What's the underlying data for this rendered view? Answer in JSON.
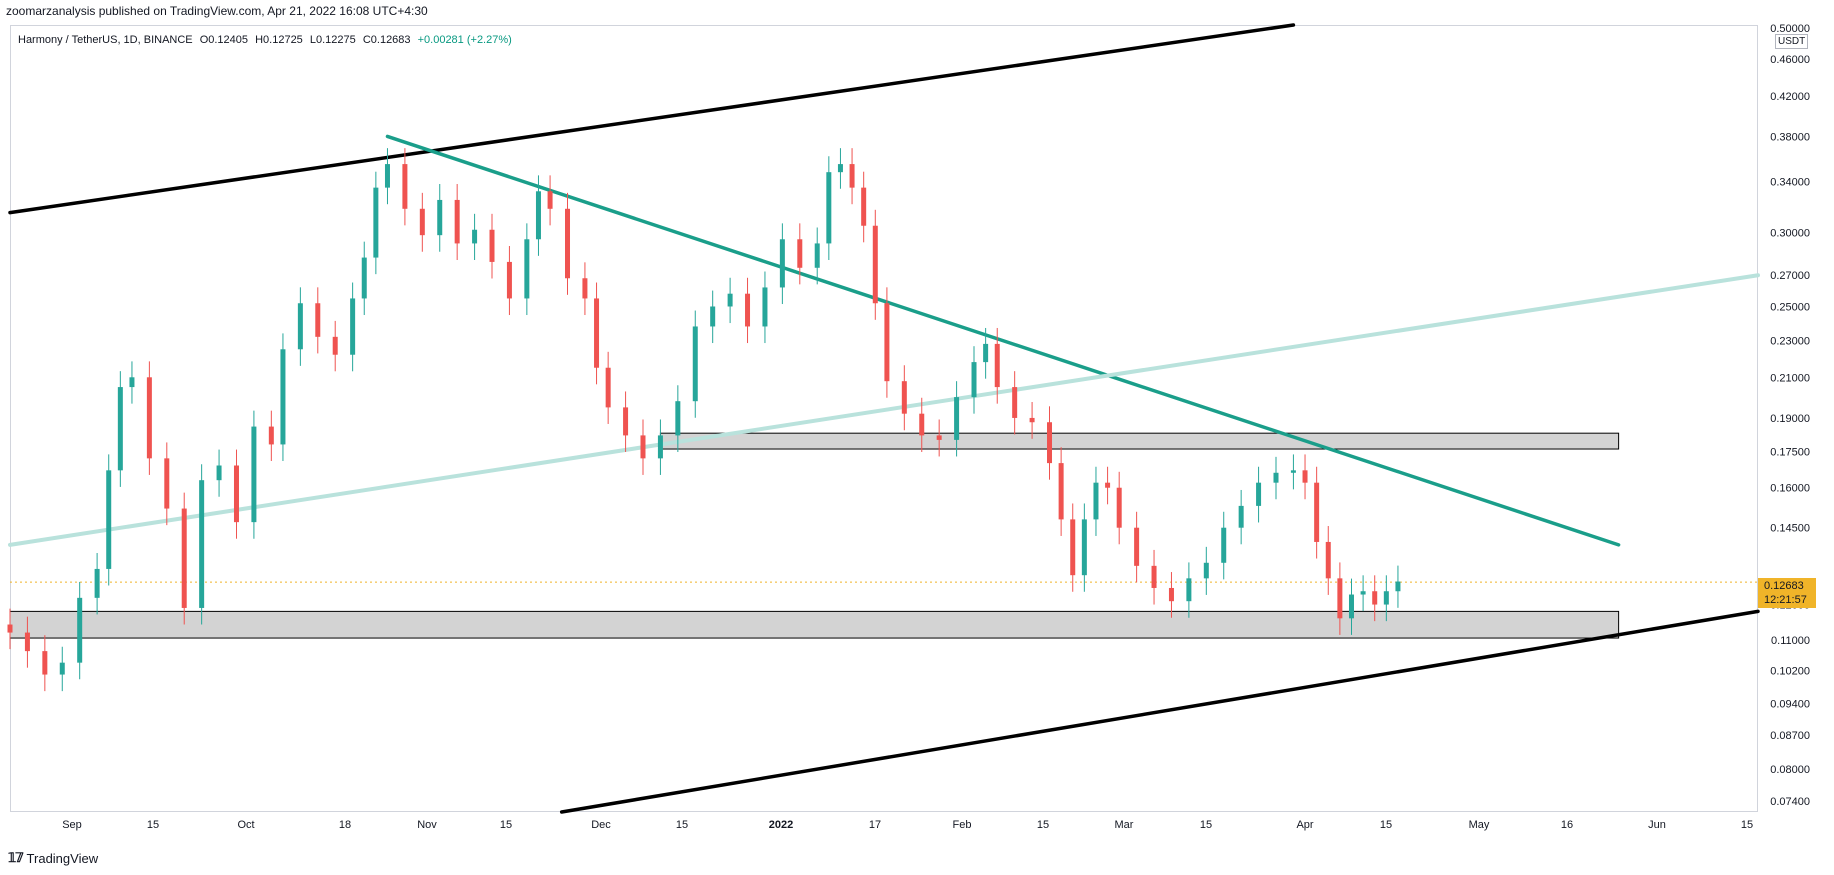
{
  "publisher_line": "zoomarzanalysis published on TradingView.com, Apr 21, 2022 16:08 UTC+4:30",
  "legend": {
    "symbol": "Harmony / TetherUS, 1D, BINANCE",
    "open": "O0.12405",
    "high": "H0.12725",
    "low": "L0.12275",
    "close": "C0.12683",
    "change": "+0.00281 (+2.27%)"
  },
  "price_axis": {
    "unit": "USDT",
    "top_partial": "0.50000",
    "labels": [
      "0.46000",
      "0.42000",
      "0.38000",
      "0.34000",
      "0.30000",
      "0.27000",
      "0.25000",
      "0.23000",
      "0.21000",
      "0.19000",
      "0.17500",
      "0.16000",
      "0.14500",
      "0.12000",
      "0.11000",
      "0.10200",
      "0.09400",
      "0.08700",
      "0.08000",
      "0.07400"
    ]
  },
  "last_price": {
    "price": "0.12683",
    "countdown": "12:21:57"
  },
  "time_axis": {
    "labels": [
      "Sep",
      "15",
      "Oct",
      "18",
      "Nov",
      "15",
      "Dec",
      "15",
      "2022",
      "17",
      "Feb",
      "15",
      "Mar",
      "15",
      "Apr",
      "15",
      "May",
      "16",
      "Jun",
      "15"
    ],
    "bold_label": "2022"
  },
  "footer": {
    "brand": "TradingView",
    "logo": "tradingview-logo-icon"
  },
  "colors": {
    "up_candle": "#26a69a",
    "down_candle": "#ef5350",
    "channel_line": "#000000",
    "downtrend_line": "#1a9e8a",
    "mid_line": "#b9e2dc",
    "zone_fill": "#d3d3d3",
    "last_price": "#f0b429"
  },
  "chart_data": {
    "type": "candlestick",
    "title": "Harmony / TetherUS, 1D, BINANCE",
    "scale": "log",
    "ylim": [
      0.072,
      0.5
    ],
    "x_range": [
      "2021-08-25",
      "2022-06-22"
    ],
    "series": [
      {
        "name": "ONE/USDT",
        "points": [
          {
            "date": "2021-08-25",
            "close": 0.112
          },
          {
            "date": "2021-08-28",
            "close": 0.107
          },
          {
            "date": "2021-08-31",
            "close": 0.101
          },
          {
            "date": "2021-09-03",
            "close": 0.104
          },
          {
            "date": "2021-09-06",
            "close": 0.122
          },
          {
            "date": "2021-09-09",
            "close": 0.131
          },
          {
            "date": "2021-09-11",
            "close": 0.167
          },
          {
            "date": "2021-09-13",
            "close": 0.205
          },
          {
            "date": "2021-09-15",
            "close": 0.21
          },
          {
            "date": "2021-09-18",
            "close": 0.172
          },
          {
            "date": "2021-09-21",
            "close": 0.152
          },
          {
            "date": "2021-09-24",
            "close": 0.119
          },
          {
            "date": "2021-09-27",
            "close": 0.163
          },
          {
            "date": "2021-09-30",
            "close": 0.169
          },
          {
            "date": "2021-10-03",
            "close": 0.147
          },
          {
            "date": "2021-10-06",
            "close": 0.186
          },
          {
            "date": "2021-10-09",
            "close": 0.178
          },
          {
            "date": "2021-10-11",
            "close": 0.225
          },
          {
            "date": "2021-10-14",
            "close": 0.252
          },
          {
            "date": "2021-10-17",
            "close": 0.232
          },
          {
            "date": "2021-10-20",
            "close": 0.222
          },
          {
            "date": "2021-10-23",
            "close": 0.255
          },
          {
            "date": "2021-10-25",
            "close": 0.282
          },
          {
            "date": "2021-10-27",
            "close": 0.335
          },
          {
            "date": "2021-10-29",
            "close": 0.355
          },
          {
            "date": "2021-11-01",
            "close": 0.318
          },
          {
            "date": "2021-11-04",
            "close": 0.298
          },
          {
            "date": "2021-11-07",
            "close": 0.325
          },
          {
            "date": "2021-11-10",
            "close": 0.292
          },
          {
            "date": "2021-11-13",
            "close": 0.302
          },
          {
            "date": "2021-11-16",
            "close": 0.279
          },
          {
            "date": "2021-11-19",
            "close": 0.255
          },
          {
            "date": "2021-11-22",
            "close": 0.295
          },
          {
            "date": "2021-11-24",
            "close": 0.332
          },
          {
            "date": "2021-11-26",
            "close": 0.318
          },
          {
            "date": "2021-11-29",
            "close": 0.268
          },
          {
            "date": "2021-12-02",
            "close": 0.255
          },
          {
            "date": "2021-12-04",
            "close": 0.215
          },
          {
            "date": "2021-12-06",
            "close": 0.195
          },
          {
            "date": "2021-12-09",
            "close": 0.182
          },
          {
            "date": "2021-12-12",
            "close": 0.172
          },
          {
            "date": "2021-12-15",
            "close": 0.182
          },
          {
            "date": "2021-12-18",
            "close": 0.198
          },
          {
            "date": "2021-12-21",
            "close": 0.238
          },
          {
            "date": "2021-12-24",
            "close": 0.25
          },
          {
            "date": "2021-12-27",
            "close": 0.258
          },
          {
            "date": "2021-12-30",
            "close": 0.238
          },
          {
            "date": "2022-01-02",
            "close": 0.262
          },
          {
            "date": "2022-01-05",
            "close": 0.295
          },
          {
            "date": "2022-01-08",
            "close": 0.275
          },
          {
            "date": "2022-01-11",
            "close": 0.292
          },
          {
            "date": "2022-01-13",
            "close": 0.348
          },
          {
            "date": "2022-01-15",
            "close": 0.355
          },
          {
            "date": "2022-01-17",
            "close": 0.335
          },
          {
            "date": "2022-01-19",
            "close": 0.305
          },
          {
            "date": "2022-01-21",
            "close": 0.252
          },
          {
            "date": "2022-01-23",
            "close": 0.208
          },
          {
            "date": "2022-01-26",
            "close": 0.192
          },
          {
            "date": "2022-01-29",
            "close": 0.182
          },
          {
            "date": "2022-02-01",
            "close": 0.18
          },
          {
            "date": "2022-02-04",
            "close": 0.2
          },
          {
            "date": "2022-02-07",
            "close": 0.218
          },
          {
            "date": "2022-02-09",
            "close": 0.228
          },
          {
            "date": "2022-02-11",
            "close": 0.205
          },
          {
            "date": "2022-02-14",
            "close": 0.19
          },
          {
            "date": "2022-02-17",
            "close": 0.188
          },
          {
            "date": "2022-02-20",
            "close": 0.17
          },
          {
            "date": "2022-02-22",
            "close": 0.148
          },
          {
            "date": "2022-02-24",
            "close": 0.129
          },
          {
            "date": "2022-02-26",
            "close": 0.148
          },
          {
            "date": "2022-02-28",
            "close": 0.162
          },
          {
            "date": "2022-03-02",
            "close": 0.16
          },
          {
            "date": "2022-03-04",
            "close": 0.145
          },
          {
            "date": "2022-03-07",
            "close": 0.132
          },
          {
            "date": "2022-03-10",
            "close": 0.125
          },
          {
            "date": "2022-03-13",
            "close": 0.121
          },
          {
            "date": "2022-03-16",
            "close": 0.128
          },
          {
            "date": "2022-03-19",
            "close": 0.133
          },
          {
            "date": "2022-03-22",
            "close": 0.145
          },
          {
            "date": "2022-03-25",
            "close": 0.153
          },
          {
            "date": "2022-03-28",
            "close": 0.162
          },
          {
            "date": "2022-03-31",
            "close": 0.166
          },
          {
            "date": "2022-04-03",
            "close": 0.167
          },
          {
            "date": "2022-04-05",
            "close": 0.162
          },
          {
            "date": "2022-04-07",
            "close": 0.14
          },
          {
            "date": "2022-04-09",
            "close": 0.128
          },
          {
            "date": "2022-04-11",
            "close": 0.116
          },
          {
            "date": "2022-04-13",
            "close": 0.123
          },
          {
            "date": "2022-04-15",
            "close": 0.124
          },
          {
            "date": "2022-04-17",
            "close": 0.12
          },
          {
            "date": "2022-04-19",
            "close": 0.124
          },
          {
            "date": "2022-04-21",
            "close": 0.127
          }
        ]
      }
    ],
    "annotations": [
      {
        "kind": "line",
        "name": "channel-top",
        "from": {
          "date": "2021-08-25",
          "price": 0.315
        },
        "to": {
          "date": "2022-04-03",
          "price": 0.5
        }
      },
      {
        "kind": "line",
        "name": "channel-bottom",
        "from": {
          "date": "2021-11-28",
          "price": 0.072
        },
        "to": {
          "date": "2022-06-22",
          "price": 0.118
        }
      },
      {
        "kind": "line",
        "name": "downtrend",
        "from": {
          "date": "2021-10-29",
          "price": 0.38
        },
        "to": {
          "date": "2022-05-29",
          "price": 0.139
        }
      },
      {
        "kind": "line",
        "name": "mid-channel",
        "from": {
          "date": "2021-08-25",
          "price": 0.139
        },
        "to": {
          "date": "2022-06-22",
          "price": 0.27
        }
      },
      {
        "kind": "zone",
        "name": "resistance-zone",
        "from": {
          "date": "2021-12-15",
          "price": 0.183
        },
        "to": {
          "date": "2022-05-29",
          "price": 0.176
        }
      },
      {
        "kind": "zone",
        "name": "support-zone",
        "from": {
          "date": "2021-08-25",
          "price": 0.118
        },
        "to": {
          "date": "2022-05-29",
          "price": 0.1105
        }
      },
      {
        "kind": "hline",
        "name": "last-price",
        "price": 0.12683
      }
    ]
  }
}
